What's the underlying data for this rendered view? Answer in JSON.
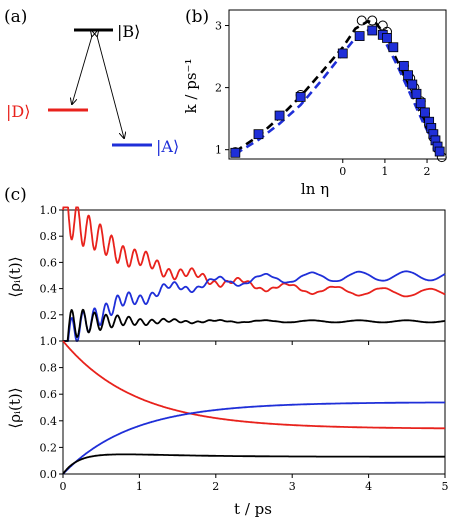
{
  "panel_labels": {
    "a": "(a)",
    "b": "(b)",
    "c": "(c)"
  },
  "levels": {
    "B": {
      "label": "|B⟩",
      "color": "#000000"
    },
    "D": {
      "label": "|D⟩",
      "color": "#e8221c"
    },
    "A": {
      "label": "|A⟩",
      "color": "#1f2fd8"
    }
  },
  "colors": {
    "black": "#000000",
    "red": "#e8221c",
    "blue": "#1f2fd8"
  },
  "chart_data": [
    {
      "panel": "b",
      "type": "scatter",
      "xlabel": "ln η",
      "ylabel": "k / ps⁻¹",
      "xlim": [
        -2.7,
        2.45
      ],
      "ylim": [
        0.85,
        3.25
      ],
      "xticks": [
        0,
        1,
        2
      ],
      "yticks": [
        1,
        2,
        3
      ],
      "series": [
        {
          "style": "dashed-line",
          "color": "#000000",
          "x": [
            -2.55,
            -2.0,
            -1.5,
            -1.0,
            -0.5,
            0.0,
            0.3,
            0.6,
            0.8,
            1.0,
            1.3,
            1.6,
            1.9,
            2.1,
            2.3
          ],
          "y": [
            0.97,
            1.22,
            1.52,
            1.86,
            2.25,
            2.65,
            2.95,
            3.07,
            3.03,
            2.85,
            2.42,
            1.95,
            1.5,
            1.22,
            0.92
          ]
        },
        {
          "style": "dashed-line",
          "color": "#1f2fd8",
          "x": [
            -2.55,
            -2.0,
            -1.5,
            -1.0,
            -0.5,
            0.0,
            0.3,
            0.6,
            0.8,
            1.0,
            1.3,
            1.6,
            1.9,
            2.1,
            2.3
          ],
          "y": [
            0.93,
            1.16,
            1.42,
            1.72,
            2.12,
            2.55,
            2.8,
            2.92,
            2.9,
            2.75,
            2.35,
            1.9,
            1.45,
            1.18,
            0.9
          ]
        },
        {
          "style": "open-circle",
          "color": "#000000",
          "x": [
            -2.55,
            -1.0,
            0.45,
            0.7,
            0.95,
            1.05,
            1.45,
            1.6,
            1.7,
            1.85,
            1.95,
            2.05,
            2.15,
            2.25,
            2.35
          ],
          "y": [
            0.96,
            1.88,
            3.08,
            3.08,
            3.0,
            2.9,
            2.35,
            2.15,
            2.0,
            1.78,
            1.58,
            1.4,
            1.2,
            1.02,
            0.88
          ]
        },
        {
          "style": "square",
          "color": "#1f2fd8",
          "x": [
            -2.55,
            -2.0,
            -1.5,
            -1.0,
            0.0,
            0.4,
            0.7,
            0.95,
            1.05,
            1.2,
            1.45,
            1.55,
            1.65,
            1.75,
            1.85,
            1.95,
            2.05,
            2.1,
            2.15,
            2.2,
            2.25,
            2.3
          ],
          "y": [
            0.95,
            1.25,
            1.55,
            1.85,
            2.55,
            2.83,
            2.92,
            2.85,
            2.8,
            2.65,
            2.35,
            2.2,
            2.05,
            1.9,
            1.75,
            1.6,
            1.45,
            1.35,
            1.25,
            1.15,
            1.05,
            0.97
          ]
        }
      ]
    },
    {
      "panel": "c-top",
      "type": "line",
      "ylabel": "⟨ρᵢ(t)⟩",
      "xlim": [
        0,
        5
      ],
      "ylim": [
        0,
        1
      ],
      "yticks": [
        0.2,
        0.4,
        0.6,
        0.8,
        1.0
      ],
      "ytick_labels": [
        "0.2",
        "0.4",
        "0.6",
        "0.8",
        "1.0"
      ],
      "series": [
        {
          "color": "#e8221c",
          "start": 1.0,
          "final": 0.36,
          "tau": 1.1,
          "osc_amp": 0.18,
          "osc_period": 0.15,
          "osc_decay": 0.9,
          "osc2_amp": 0.03,
          "osc2_period": 0.62
        },
        {
          "color": "#1f2fd8",
          "start": 0.0,
          "final": 0.5,
          "tau": 0.9,
          "osc_amp": 0.13,
          "osc_period": 0.15,
          "osc_decay": 0.8,
          "osc2_amp": 0.035,
          "osc2_period": 0.62
        },
        {
          "color": "#000000",
          "start": 0.0,
          "final": 0.15,
          "tau": 0.08,
          "osc_amp": 0.15,
          "osc_period": 0.15,
          "osc_decay": 0.55,
          "osc2_amp": 0.008,
          "osc2_period": 0.62
        }
      ]
    },
    {
      "panel": "c-bottom",
      "type": "line",
      "xlabel": "t / ps",
      "ylabel": "⟨ρᵢ(t)⟩",
      "xlim": [
        0,
        5
      ],
      "ylim": [
        0,
        1
      ],
      "xticks": [
        0,
        1,
        2,
        3,
        4,
        5
      ],
      "yticks": [
        0.0,
        0.2,
        0.4,
        0.6,
        0.8,
        1.0
      ],
      "ytick_labels": [
        "0.0",
        "0.2",
        "0.4",
        "0.6",
        "0.8",
        "1.0"
      ],
      "series": [
        {
          "color": "#e8221c",
          "start": 1.0,
          "final": 0.34,
          "tau": 0.95,
          "osc_amp": 0.0,
          "osc_period": 0.15,
          "osc_decay": 1,
          "osc2_amp": 0.0,
          "osc2_period": 0.62
        },
        {
          "color": "#1f2fd8",
          "start": 0.0,
          "final": 0.54,
          "tau": 0.9,
          "osc_amp": 0.0,
          "osc_period": 0.15,
          "osc_decay": 1,
          "osc2_amp": 0.0,
          "osc2_period": 0.62
        },
        {
          "color": "#000000",
          "start": 0.0,
          "final": 0.13,
          "tau": 0.18,
          "overshoot": 0.02,
          "osc_amp": 0.0,
          "osc_period": 0.15,
          "osc_decay": 1,
          "osc2_amp": 0.0,
          "osc2_period": 0.62
        }
      ]
    }
  ]
}
